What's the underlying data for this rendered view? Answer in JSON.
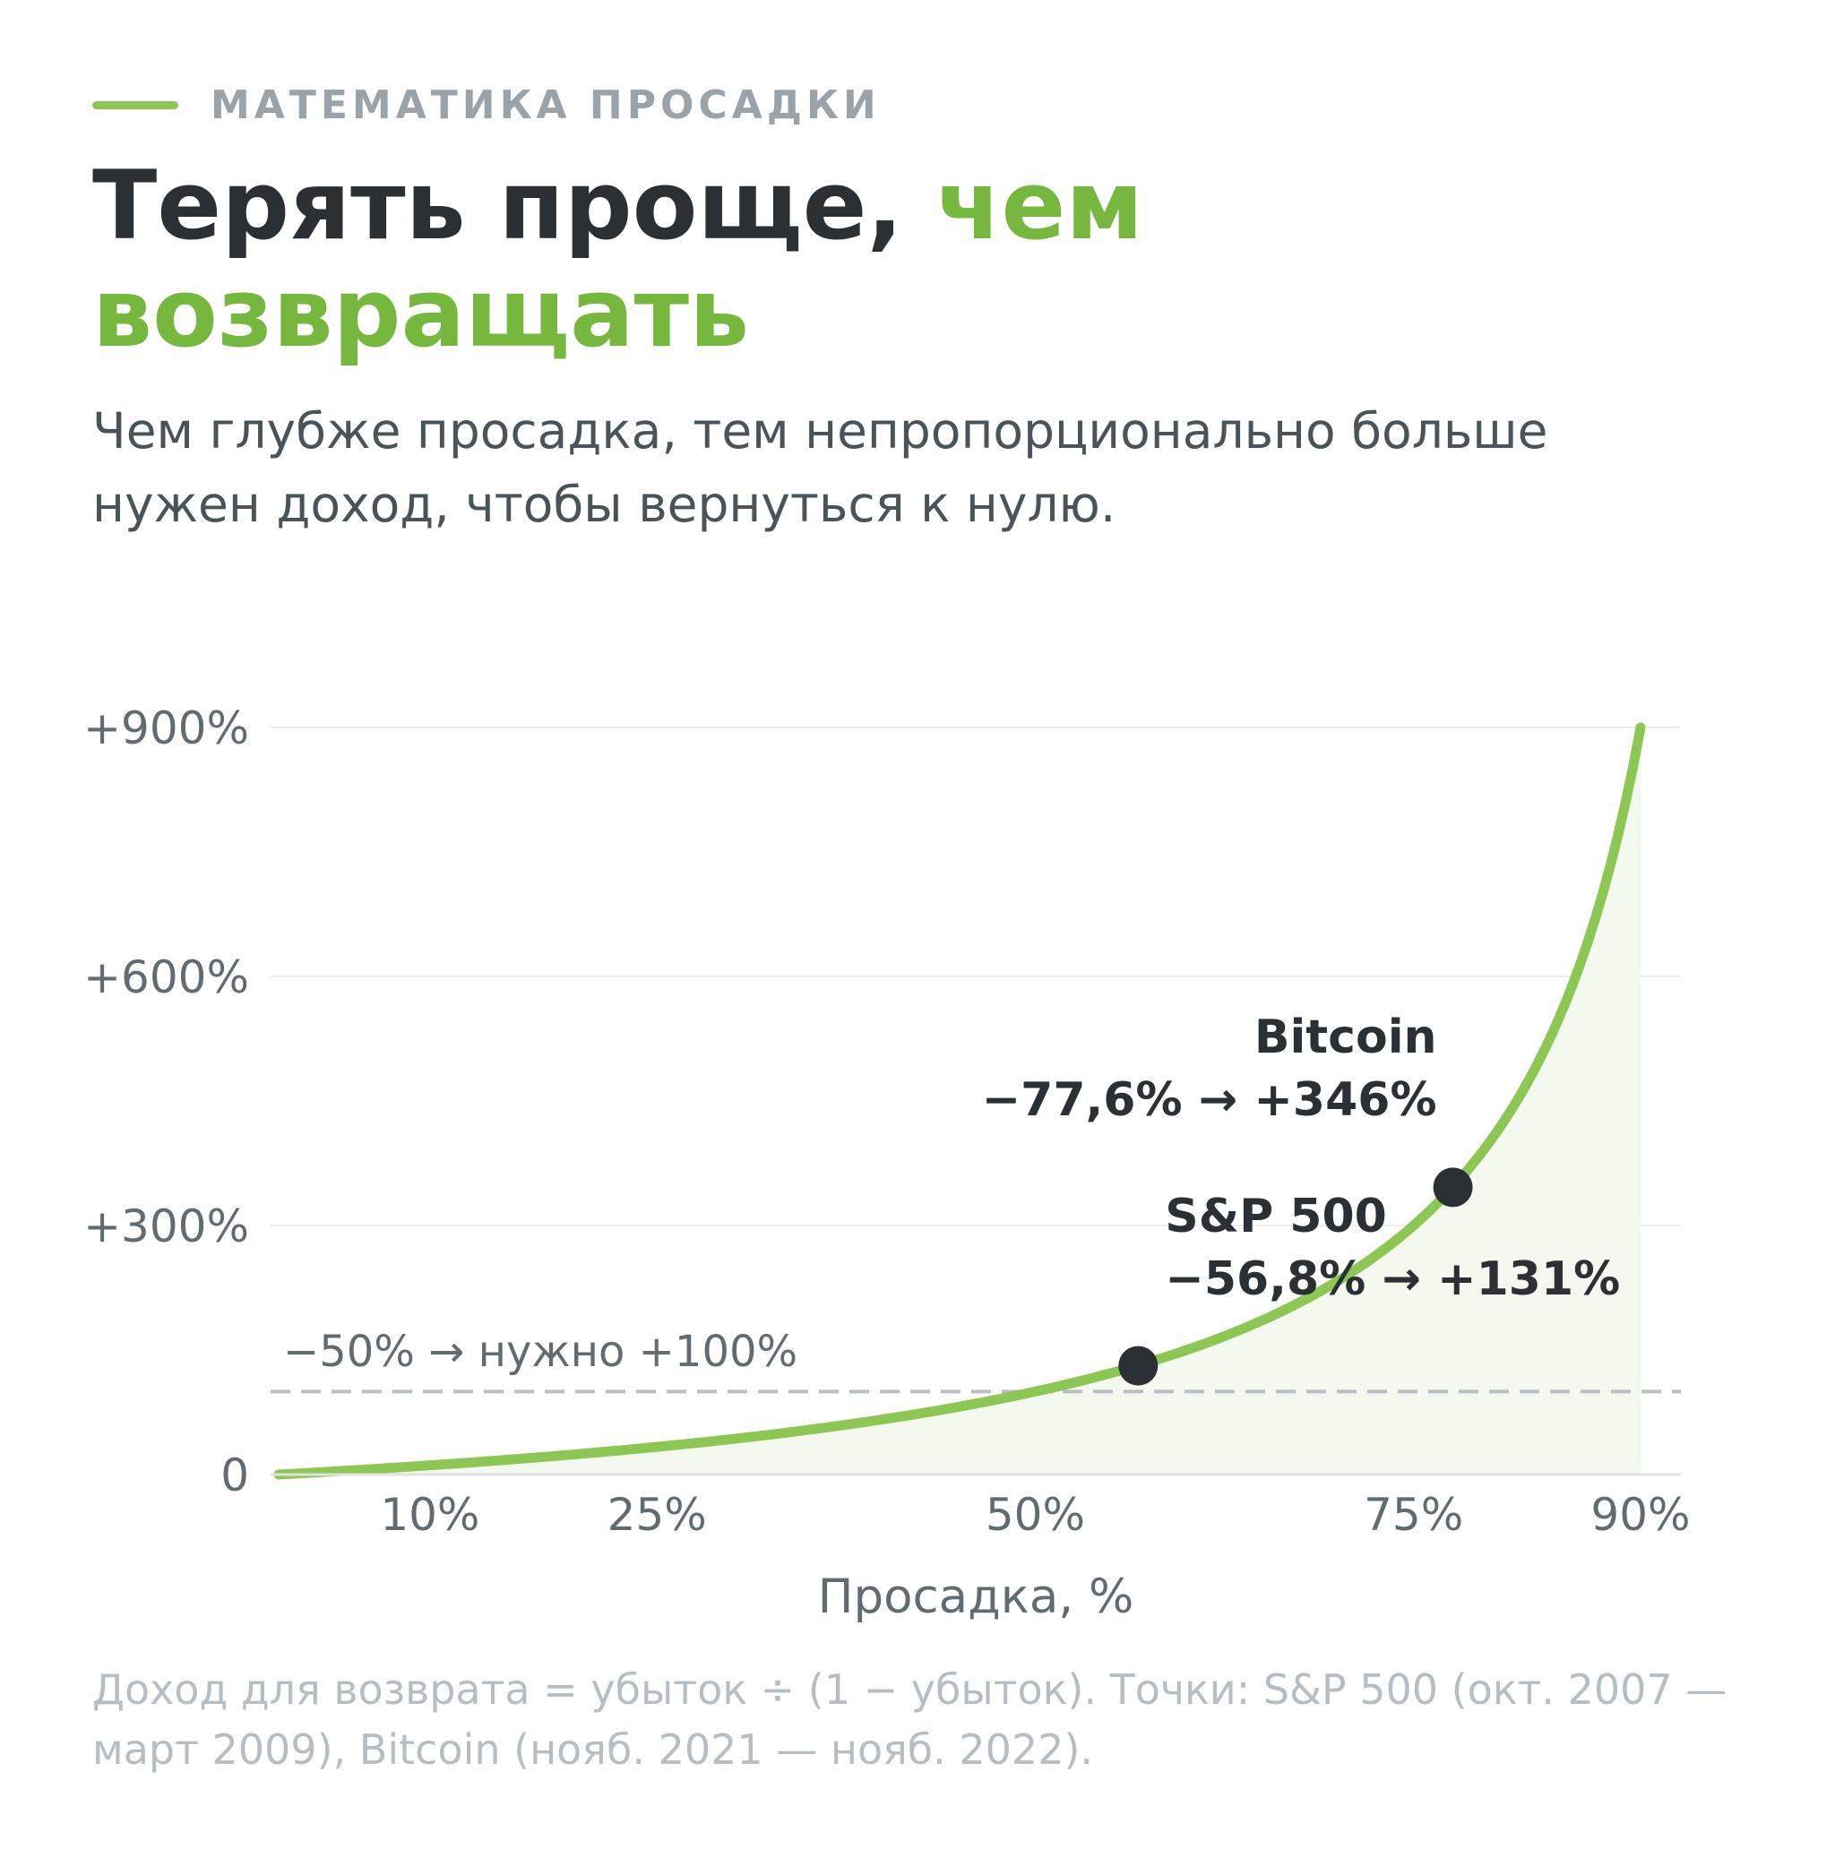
{
  "header": {
    "eyebrow": "МАТЕМАТИКА ПРОСАДКИ",
    "title_dark": "Терять проще, ",
    "title_accent": "чем возвращать",
    "subtitle": "Чем глубже просадка, тем непропорционально больше нужен доход, чтобы вернуться к нулю."
  },
  "colors": {
    "accent": "#8cc653",
    "accent_text": "#76b83e",
    "dark": "#2a3033",
    "grid": "#eceff0",
    "reference_line": "#b9c0c4",
    "area_fill": "#f3f9ee",
    "axis_text": "#616b70"
  },
  "chart_data": {
    "type": "line",
    "xlabel": "Просадка, %",
    "ylabel": "",
    "xlim": [
      0,
      90
    ],
    "ylim": [
      0,
      900
    ],
    "x_ticks": [
      {
        "value": 10,
        "label": "10%"
      },
      {
        "value": 25,
        "label": "25%"
      },
      {
        "value": 50,
        "label": "50%"
      },
      {
        "value": 75,
        "label": "75%"
      },
      {
        "value": 90,
        "label": "90%"
      }
    ],
    "y_ticks": [
      {
        "value": 0,
        "label": "0"
      },
      {
        "value": 300,
        "label": "+300%"
      },
      {
        "value": 600,
        "label": "+600%"
      },
      {
        "value": 900,
        "label": "+900%"
      }
    ],
    "grid": true,
    "series": [
      {
        "x": [
          0,
          5,
          10,
          15,
          20,
          25,
          30,
          35,
          40,
          45,
          50,
          55,
          60,
          65,
          70,
          75,
          80,
          85,
          90
        ],
        "y": [
          0,
          5.3,
          11.1,
          17.6,
          25,
          33.3,
          42.9,
          53.8,
          66.7,
          81.8,
          100,
          122.2,
          150,
          185.7,
          233.3,
          300,
          400,
          566.7,
          900
        ]
      }
    ],
    "reference_line": {
      "y": 100,
      "label": "−50% → нужно +100%"
    },
    "points": [
      {
        "x": 56.8,
        "y": 131,
        "name": "S&P 500",
        "label": "−56,8% → +131%"
      },
      {
        "x": 77.6,
        "y": 346,
        "name": "Bitcoin",
        "label": "−77,6% → +346%"
      }
    ]
  },
  "footnote": "Доход для возврата = убыток ÷ (1 − убыток). Точки: S&P 500 (окт. 2007 — март 2009), Bitcoin (нояб. 2021 — нояб. 2022)."
}
